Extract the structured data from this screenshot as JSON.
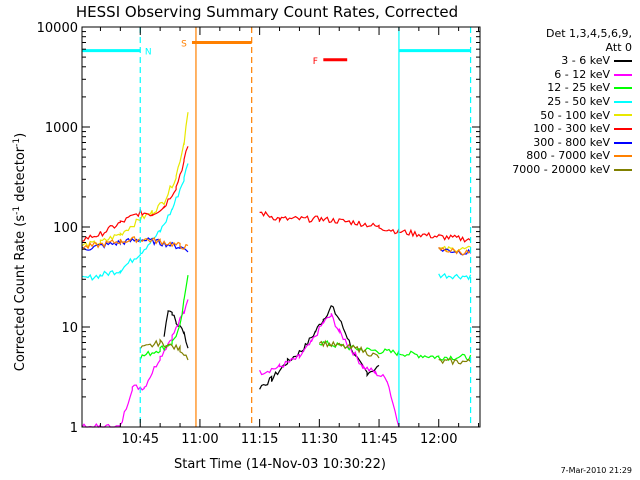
{
  "chart_data": {
    "type": "line",
    "title": "HESSI Observing Summary Count Rates, Corrected",
    "xlabel": "Start Time (14-Nov-03 10:30:22)",
    "ylabel": "Corrected Count Rate (s^-1 detector^-1)",
    "ylabel_main": "Corrected Count Rate (s",
    "ylabel_sup1": "-1",
    "ylabel_mid": " detector",
    "ylabel_sup2": "-1",
    "ylabel_end": ")",
    "y_scale": "log",
    "ylim": [
      1,
      10000
    ],
    "xlim": [
      "10:30:22",
      "12:10:22"
    ],
    "x_ticks": [
      "10:45",
      "11:00",
      "11:15",
      "11:30",
      "11:45",
      "12:00"
    ],
    "y_ticks": [
      "1",
      "10",
      "100",
      "1000",
      "10000"
    ],
    "legend_title": [
      "Det 1,3,4,5,6,9,",
      "Att 0"
    ],
    "legend_placement": "right",
    "series": [
      {
        "name": "3 - 6 keV",
        "color": "#000000",
        "x": [
          "10:51",
          "10:52",
          "10:53",
          "10:54",
          "10:56",
          "10:57",
          "11:15",
          "11:18",
          "11:22",
          "11:26",
          "11:29",
          "11:31",
          "11:33",
          "11:35",
          "11:37",
          "11:39",
          "11:42",
          "11:45"
        ],
        "y": [
          8,
          15,
          14,
          11,
          9,
          6,
          2.5,
          3,
          4.5,
          6,
          9,
          12,
          16,
          12,
          8,
          5,
          3.5,
          4
        ]
      },
      {
        "name": "6 - 12 keV",
        "color": "#ff00ff",
        "x": [
          "10:30:22",
          "10:35",
          "10:40",
          "10:43",
          "10:46",
          "10:50",
          "10:53",
          "10:56",
          "10:57",
          "11:15",
          "11:20",
          "11:25",
          "11:28",
          "11:31",
          "11:33",
          "11:35",
          "11:38",
          "11:41",
          "11:44",
          "11:47",
          "11:50"
        ],
        "y": [
          1,
          1,
          1,
          2.5,
          2.5,
          5,
          8,
          14,
          20,
          3.5,
          4,
          5,
          7,
          11,
          13,
          9,
          6,
          4,
          3.5,
          3,
          1
        ]
      },
      {
        "name": "12 - 25 keV",
        "color": "#00ff00",
        "x": [
          "10:30:22",
          "10:45",
          "10:50",
          "10:53",
          "10:55",
          "10:56",
          "10:57",
          "11:15",
          "11:30",
          "11:40",
          "11:50",
          "12:00",
          "12:08"
        ],
        "y": [
          5,
          5,
          6,
          7,
          10,
          18,
          35,
          8,
          7,
          6,
          5.5,
          5,
          5
        ]
      },
      {
        "name": "25 - 50 keV",
        "color": "#00ffff",
        "x": [
          "10:30:22",
          "10:35",
          "10:40",
          "10:45",
          "10:50",
          "10:53",
          "10:56",
          "10:57",
          "11:15",
          "11:30",
          "11:45",
          "12:00",
          "12:08"
        ],
        "y": [
          30,
          33,
          37,
          55,
          90,
          150,
          300,
          450,
          37,
          35,
          34,
          33,
          32
        ]
      },
      {
        "name": "50 - 100 keV",
        "color": "#e8e800",
        "x": [
          "10:30:22",
          "10:35",
          "10:40",
          "10:45",
          "10:48",
          "10:51",
          "10:54",
          "10:56",
          "10:57",
          "11:15",
          "11:30",
          "11:45",
          "12:00",
          "12:08"
        ],
        "y": [
          65,
          70,
          85,
          120,
          140,
          180,
          320,
          700,
          1500,
          75,
          78,
          70,
          60,
          60
        ]
      },
      {
        "name": "100 - 300 keV",
        "color": "#ff0000",
        "x": [
          "10:30:22",
          "10:35",
          "10:40",
          "10:45",
          "10:48",
          "10:51",
          "10:54",
          "10:56",
          "10:57",
          "11:15",
          "11:20",
          "11:30",
          "11:40",
          "11:45",
          "11:50",
          "12:00",
          "12:08"
        ],
        "y": [
          75,
          85,
          110,
          140,
          135,
          160,
          250,
          450,
          650,
          140,
          120,
          120,
          110,
          100,
          90,
          80,
          75
        ]
      },
      {
        "name": "300 - 800 keV",
        "color": "#0000ff",
        "x": [
          "10:30:22",
          "10:40",
          "10:45",
          "10:50",
          "10:55",
          "10:57",
          "11:15",
          "11:30",
          "11:45",
          "12:00",
          "12:08"
        ],
        "y": [
          60,
          70,
          75,
          70,
          63,
          60,
          90,
          85,
          75,
          60,
          55
        ]
      },
      {
        "name": "800 - 7000 keV",
        "color": "#ff8000",
        "x": [
          "10:30:22",
          "10:40",
          "10:45",
          "10:50",
          "10:55",
          "10:57",
          "11:15",
          "11:30",
          "11:45",
          "12:00",
          "12:08"
        ],
        "y": [
          62,
          72,
          76,
          72,
          65,
          62,
          88,
          85,
          75,
          60,
          55
        ]
      },
      {
        "name": "7000 - 20000 keV",
        "color": "#808000",
        "x": [
          "10:30:22",
          "10:45",
          "10:50",
          "10:55",
          "10:57",
          "11:15",
          "11:30",
          "11:40",
          "11:45",
          "12:00",
          "12:08"
        ],
        "y": [
          4.5,
          6,
          7,
          6,
          5,
          6,
          7,
          6,
          5,
          4.5,
          4.5
        ]
      }
    ],
    "flag_bars": [
      {
        "label": "N",
        "color": "#00ffff",
        "y": 5800,
        "segments": [
          [
            "10:30:22",
            "10:45"
          ],
          [
            "11:50",
            "12:08"
          ]
        ]
      },
      {
        "label": "S",
        "color": "#ff8000",
        "y": 7000,
        "segments": [
          [
            "10:58",
            "11:13"
          ]
        ]
      },
      {
        "label": "F",
        "color": "#ff0000",
        "y": 4700,
        "segments": [
          [
            "11:31",
            "11:37"
          ]
        ]
      }
    ],
    "vlines": [
      {
        "x": "10:45",
        "color": "#00ffff",
        "style": "dashed"
      },
      {
        "x": "10:59",
        "color": "#ff8000",
        "style": "solid"
      },
      {
        "x": "11:13",
        "color": "#ff8000",
        "style": "dashed"
      },
      {
        "x": "11:50",
        "color": "#00ffff",
        "style": "solid"
      },
      {
        "x": "12:08",
        "color": "#00ffff",
        "style": "dashed"
      }
    ],
    "timestamp": "7-Mar-2010 21:29"
  }
}
